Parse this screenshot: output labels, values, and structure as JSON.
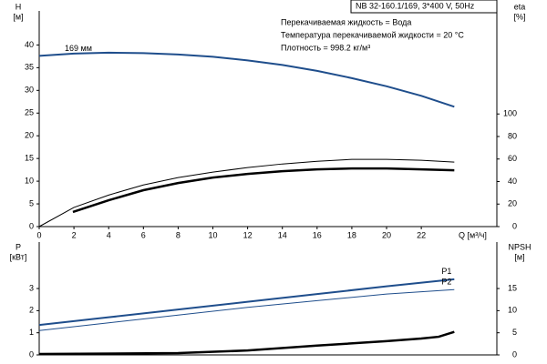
{
  "chart_data": [
    {
      "type": "line",
      "header": "NB 32-160.1/169, 3*400 V, 50Hz",
      "notes": [
        "Перекачиваемая жидкость = Вода",
        "Температура перекачиваемой жидкости = 20 °C",
        "Плотность = 998.2 кг/м³"
      ],
      "ylabel": "H",
      "yunit": "[м]",
      "y2label": "eta",
      "y2unit": "[%]",
      "xlabel": "Q [м³/ч]",
      "xlim": [
        0,
        26.35
      ],
      "xticks": [
        0,
        2,
        4,
        6,
        8,
        10,
        12,
        14,
        16,
        18,
        20,
        22
      ],
      "ylim": [
        0,
        47.5
      ],
      "yticks": [
        0,
        5,
        10,
        15,
        20,
        25,
        30,
        35,
        40
      ],
      "y2lim": [
        0,
        191.5
      ],
      "y2ticks": [
        0,
        20,
        40,
        60,
        80,
        100
      ],
      "series": [
        {
          "name": "169 мм",
          "color": "#1f4e8c",
          "width": 2,
          "axis": "y",
          "x": [
            0,
            2,
            4,
            6,
            8,
            10,
            12,
            14,
            16,
            18,
            20,
            22,
            23.9
          ],
          "values": [
            37.6,
            38.1,
            38.3,
            38.2,
            37.9,
            37.4,
            36.6,
            35.6,
            34.3,
            32.7,
            30.9,
            28.8,
            26.4
          ]
        },
        {
          "color": "#000000",
          "width": 1,
          "axis": "y2",
          "x": [
            0,
            2,
            4,
            6,
            8,
            10,
            12,
            14,
            16,
            18,
            20,
            22,
            23.9
          ],
          "values": [
            0,
            17,
            28,
            37,
            43.5,
            48.4,
            52.4,
            55.6,
            58,
            59.7,
            59.7,
            58.9,
            57.3
          ]
        },
        {
          "color": "#000000",
          "width": 2.5,
          "axis": "y2",
          "x": [
            1.94,
            4,
            6,
            8,
            10,
            12,
            14,
            16,
            18,
            20,
            22,
            23.9
          ],
          "values": [
            13,
            23.4,
            32.3,
            38.7,
            43.5,
            46.8,
            49.2,
            50.8,
            51.6,
            51.6,
            50.8,
            50
          ]
        }
      ]
    },
    {
      "type": "line",
      "ylabel": "P",
      "yunit": "[кВт]",
      "y2label": "NPSH",
      "y2unit": "[м]",
      "xlim": [
        0,
        26.35
      ],
      "ylim": [
        0,
        5.1
      ],
      "yticks": [
        0,
        1,
        2,
        3
      ],
      "y2lim": [
        0,
        25.5
      ],
      "y2ticks": [
        0,
        5,
        10,
        15
      ],
      "series": [
        {
          "name": "P1",
          "color": "#1f4e8c",
          "width": 2,
          "axis": "y",
          "x": [
            0,
            4,
            8,
            12,
            16,
            20,
            23.9
          ],
          "values": [
            1.35,
            1.7,
            2.05,
            2.4,
            2.75,
            3.1,
            3.42
          ]
        },
        {
          "name": "P2",
          "color": "#1f4e8c",
          "width": 1,
          "axis": "y",
          "x": [
            0,
            4,
            8,
            12,
            16,
            20,
            23.9
          ],
          "values": [
            1.1,
            1.45,
            1.8,
            2.15,
            2.45,
            2.75,
            2.95
          ]
        },
        {
          "color": "#000000",
          "width": 2.5,
          "axis": "y2",
          "x": [
            0,
            8,
            12,
            16,
            20,
            22,
            23,
            23.9
          ],
          "values": [
            0.2,
            0.4,
            1.0,
            2.1,
            3.1,
            3.7,
            4.1,
            5.2
          ]
        }
      ]
    }
  ]
}
